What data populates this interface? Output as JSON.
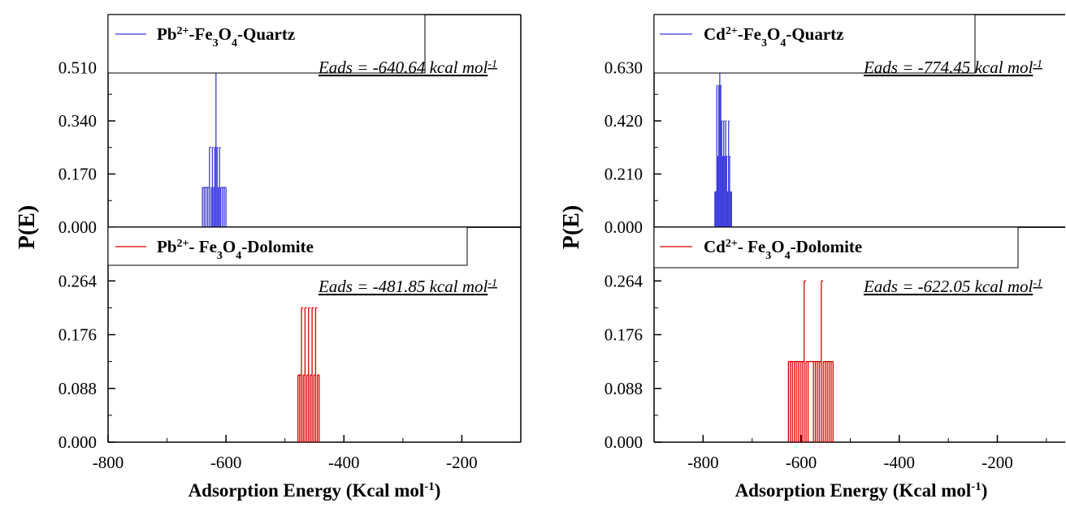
{
  "figure": {
    "y_title": "P(E)",
    "x_title": {
      "text": "Adsorption Energy (Kcal mol",
      "sup": "-1",
      "close": ")"
    }
  },
  "chart_data": [
    {
      "type": "bar",
      "panel": "left",
      "title": "",
      "xlabel": "Adsorption Energy (Kcal mol-1)",
      "ylabel": "P(E)",
      "xlim": [
        -800,
        -100
      ],
      "x_ticks": [
        -800,
        -600,
        -400,
        -200
      ],
      "subplots": [
        {
          "position": "top",
          "legend": {
            "parts": [
              [
                "Pb",
                ""
              ],
              [
                "2+",
                "sup"
              ],
              [
                "-Fe",
                ""
              ],
              [
                "3",
                "sub"
              ],
              [
                "O",
                ""
              ],
              [
                "4",
                "sub"
              ],
              [
                "-Quartz",
                ""
              ]
            ],
            "color": "#3b3bdc"
          },
          "annotation": {
            "text": "Eads = -640.64 kcal mol",
            "sup": "-1"
          },
          "ylim": [
            0,
            0.68
          ],
          "y_ticks": [
            "0.000",
            "0.170",
            "0.340",
            "0.510"
          ],
          "color": "#3b3bdc",
          "series": [
            {
              "name": "Pb2+-Fe3O4-Quartz",
              "x": [
                -640,
                -637,
                -634,
                -631,
                -628,
                -625,
                -623,
                -621,
                -619,
                -617,
                -615,
                -613,
                -611,
                -609,
                -606,
                -603,
                -600
              ],
              "values": [
                0.127,
                0.127,
                0.127,
                0.127,
                0.255,
                0.127,
                0.255,
                0.127,
                0.255,
                0.51,
                0.255,
                0.127,
                0.255,
                0.127,
                0.127,
                0.127,
                0.127
              ]
            }
          ]
        },
        {
          "position": "bottom",
          "legend": {
            "parts": [
              [
                "Pb",
                ""
              ],
              [
                "2+",
                "sup"
              ],
              [
                "- Fe",
                ""
              ],
              [
                "3",
                "sub"
              ],
              [
                "O",
                ""
              ],
              [
                "4",
                "sub"
              ],
              [
                "-Dolomite",
                ""
              ]
            ],
            "color": "#e00000"
          },
          "annotation": {
            "text": "Eads = -481.85 kcal mol",
            "sup": "-1"
          },
          "ylim": [
            0,
            0.352
          ],
          "y_ticks": [
            "0.000",
            "0.088",
            "0.176",
            "0.264"
          ],
          "color": "#e00000",
          "series": [
            {
              "name": "Pb2+-Fe3O4-Dolomite",
              "x": [
                -478,
                -475,
                -472,
                -469,
                -466,
                -463,
                -460,
                -457,
                -454,
                -451,
                -448,
                -445,
                -442
              ],
              "values": [
                0.11,
                0.11,
                0.22,
                0.11,
                0.22,
                0.11,
                0.22,
                0.11,
                0.22,
                0.11,
                0.22,
                0.11,
                0.11
              ]
            }
          ]
        }
      ]
    },
    {
      "type": "bar",
      "panel": "right",
      "title": "",
      "xlabel": "Adsorption Energy (Kcal mol-1)",
      "ylabel": "P(E)",
      "xlim": [
        -900,
        -60
      ],
      "x_ticks": [
        -800,
        -600,
        -400,
        -200
      ],
      "subplots": [
        {
          "position": "top",
          "legend": {
            "parts": [
              [
                "Cd",
                ""
              ],
              [
                "2+",
                "sup"
              ],
              [
                "-Fe",
                ""
              ],
              [
                "3",
                "sub"
              ],
              [
                "O",
                ""
              ],
              [
                "4",
                "sub"
              ],
              [
                "-Quartz",
                ""
              ]
            ],
            "color": "#3b3bdc"
          },
          "annotation": {
            "text": "Eads = -774.45 kcal mol",
            "sup": "-1"
          },
          "ylim": [
            0,
            0.84
          ],
          "y_ticks": [
            "0.000",
            "0.210",
            "0.420",
            "0.630"
          ],
          "color": "#3b3bdc",
          "series": [
            {
              "name": "Cd2+-Fe3O4-Quartz",
              "x": [
                -776,
                -774,
                -772,
                -770,
                -768,
                -766,
                -764,
                -762,
                -760,
                -758,
                -756,
                -754,
                -752,
                -750,
                -748,
                -746,
                -744,
                -742
              ],
              "values": [
                0.14,
                0.14,
                0.56,
                0.28,
                0.56,
                0.7,
                0.56,
                0.42,
                0.28,
                0.42,
                0.28,
                0.42,
                0.28,
                0.14,
                0.42,
                0.28,
                0.14,
                0.14
              ]
            }
          ]
        },
        {
          "position": "bottom",
          "legend": {
            "parts": [
              [
                "Cd",
                ""
              ],
              [
                "2+",
                "sup"
              ],
              [
                "- Fe",
                ""
              ],
              [
                "3",
                "sub"
              ],
              [
                "O",
                ""
              ],
              [
                "4",
                "sub"
              ],
              [
                "-Dolomite",
                ""
              ]
            ],
            "color": "#e00000"
          },
          "annotation": {
            "text": "Eads = -622.05 kcal mol",
            "sup": "-1"
          },
          "ylim": [
            0,
            0.352
          ],
          "y_ticks": [
            "0.000",
            "0.088",
            "0.176",
            "0.264"
          ],
          "color": "#e00000",
          "series": [
            {
              "name": "Cd2+-Fe3O4-Dolomite",
              "x": [
                -626,
                -622,
                -618,
                -614,
                -610,
                -606,
                -602,
                -598,
                -594,
                -590,
                -586,
                -575,
                -571,
                -567,
                -563,
                -559,
                -555,
                -551,
                -547,
                -543,
                -539,
                -535
              ],
              "values": [
                0.132,
                0.132,
                0.132,
                0.132,
                0.132,
                0.132,
                0.132,
                0.132,
                0.264,
                0.132,
                0.132,
                0.132,
                0.132,
                0.132,
                0.132,
                0.264,
                0.132,
                0.132,
                0.132,
                0.132,
                0.132,
                0.132
              ]
            }
          ]
        }
      ]
    }
  ]
}
